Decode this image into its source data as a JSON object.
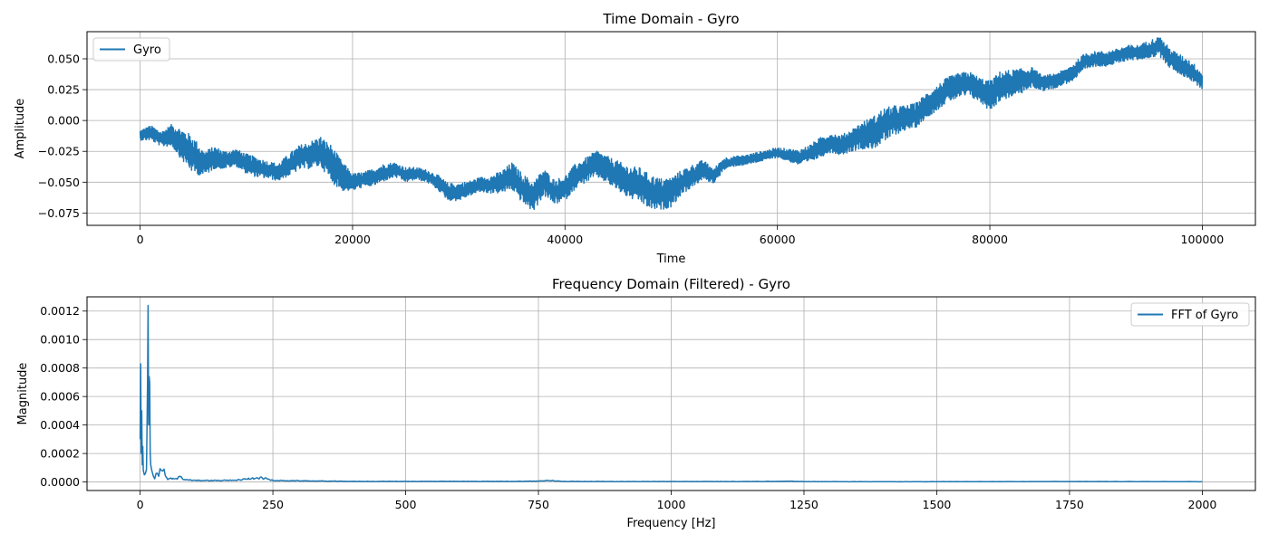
{
  "chart_data": [
    {
      "type": "line",
      "title": "Time Domain - Gyro",
      "xlabel": "Time",
      "ylabel": "Amplitude",
      "xlim": [
        -5000,
        105000
      ],
      "ylim": [
        -0.085,
        0.072
      ],
      "xticks": [
        0,
        20000,
        40000,
        60000,
        80000,
        100000
      ],
      "xtick_labels": [
        "0",
        "20000",
        "40000",
        "60000",
        "80000",
        "100000"
      ],
      "yticks": [
        -0.075,
        -0.05,
        -0.025,
        0.0,
        0.025,
        0.05
      ],
      "ytick_labels": [
        "−0.075",
        "−0.050",
        "−0.025",
        "0.000",
        "0.025",
        "0.050"
      ],
      "grid": true,
      "legend_position": "upper-left",
      "series": [
        {
          "name": "Gyro",
          "color": "#1f77b4",
          "x": [
            0,
            1000,
            2000,
            3000,
            4000,
            5000,
            6000,
            7000,
            8000,
            9000,
            10000,
            11000,
            12000,
            13000,
            14000,
            15000,
            16000,
            17000,
            18000,
            19000,
            20000,
            21000,
            22000,
            23000,
            24000,
            25000,
            26000,
            27000,
            28000,
            29000,
            30000,
            31000,
            32000,
            33000,
            34000,
            35000,
            36000,
            37000,
            38000,
            39000,
            40000,
            41000,
            42000,
            43000,
            44000,
            45000,
            46000,
            47000,
            48000,
            49000,
            50000,
            51000,
            52000,
            53000,
            54000,
            55000,
            56000,
            57000,
            58000,
            59000,
            60000,
            61000,
            62000,
            63000,
            64000,
            65000,
            66000,
            67000,
            68000,
            69000,
            70000,
            71000,
            72000,
            73000,
            74000,
            75000,
            76000,
            77000,
            78000,
            79000,
            80000,
            81000,
            82000,
            83000,
            84000,
            85000,
            86000,
            87000,
            88000,
            89000,
            90000,
            91000,
            92000,
            93000,
            94000,
            95000,
            96000,
            97000,
            98000,
            99000,
            100000
          ],
          "y": [
            -0.012,
            -0.01,
            -0.015,
            -0.012,
            -0.02,
            -0.028,
            -0.035,
            -0.03,
            -0.032,
            -0.03,
            -0.035,
            -0.038,
            -0.04,
            -0.042,
            -0.036,
            -0.03,
            -0.028,
            -0.025,
            -0.035,
            -0.045,
            -0.05,
            -0.048,
            -0.046,
            -0.042,
            -0.04,
            -0.044,
            -0.043,
            -0.045,
            -0.05,
            -0.058,
            -0.058,
            -0.055,
            -0.052,
            -0.052,
            -0.05,
            -0.045,
            -0.055,
            -0.062,
            -0.05,
            -0.058,
            -0.055,
            -0.045,
            -0.04,
            -0.035,
            -0.04,
            -0.045,
            -0.05,
            -0.052,
            -0.058,
            -0.06,
            -0.058,
            -0.05,
            -0.045,
            -0.04,
            -0.045,
            -0.035,
            -0.033,
            -0.032,
            -0.03,
            -0.028,
            -0.026,
            -0.028,
            -0.03,
            -0.027,
            -0.022,
            -0.018,
            -0.02,
            -0.016,
            -0.012,
            -0.01,
            -0.004,
            0.0,
            0.002,
            0.004,
            0.012,
            0.018,
            0.025,
            0.028,
            0.03,
            0.025,
            0.02,
            0.028,
            0.03,
            0.032,
            0.035,
            0.03,
            0.032,
            0.035,
            0.04,
            0.048,
            0.05,
            0.05,
            0.052,
            0.055,
            0.055,
            0.058,
            0.06,
            0.05,
            0.045,
            0.04,
            0.032
          ],
          "band": [
            0.004,
            0.006,
            0.006,
            0.009,
            0.013,
            0.015,
            0.01,
            0.009,
            0.007,
            0.007,
            0.008,
            0.008,
            0.007,
            0.007,
            0.009,
            0.01,
            0.011,
            0.012,
            0.015,
            0.012,
            0.007,
            0.006,
            0.007,
            0.007,
            0.006,
            0.006,
            0.005,
            0.005,
            0.006,
            0.007,
            0.007,
            0.006,
            0.006,
            0.007,
            0.009,
            0.011,
            0.012,
            0.012,
            0.011,
            0.01,
            0.01,
            0.01,
            0.01,
            0.011,
            0.011,
            0.012,
            0.013,
            0.014,
            0.014,
            0.013,
            0.012,
            0.01,
            0.009,
            0.008,
            0.006,
            0.005,
            0.004,
            0.004,
            0.004,
            0.004,
            0.004,
            0.005,
            0.006,
            0.007,
            0.008,
            0.008,
            0.008,
            0.009,
            0.011,
            0.013,
            0.014,
            0.012,
            0.01,
            0.01,
            0.01,
            0.01,
            0.01,
            0.01,
            0.01,
            0.01,
            0.012,
            0.012,
            0.011,
            0.01,
            0.008,
            0.006,
            0.006,
            0.006,
            0.007,
            0.007,
            0.006,
            0.006,
            0.006,
            0.006,
            0.006,
            0.007,
            0.008,
            0.008,
            0.008,
            0.008,
            0.007
          ]
        }
      ]
    },
    {
      "type": "line",
      "title": "Frequency Domain (Filtered) - Gyro",
      "xlabel": "Frequency [Hz]",
      "ylabel": "Magnitude",
      "xlim": [
        -100,
        2100
      ],
      "ylim": [
        -6e-05,
        0.0013
      ],
      "xticks": [
        0,
        250,
        500,
        750,
        1000,
        1250,
        1500,
        1750,
        2000
      ],
      "xtick_labels": [
        "0",
        "250",
        "500",
        "750",
        "1000",
        "1250",
        "1500",
        "1750",
        "2000"
      ],
      "yticks": [
        0.0,
        0.0002,
        0.0004,
        0.0006,
        0.0008,
        0.001,
        0.0012
      ],
      "ytick_labels": [
        "0.0000",
        "0.0002",
        "0.0004",
        "0.0006",
        "0.0008",
        "0.0010",
        "0.0012"
      ],
      "grid": true,
      "legend_position": "upper-right",
      "series": [
        {
          "name": "FFT of Gyro",
          "color": "#1f77b4",
          "x": [
            0,
            1,
            2,
            3,
            4,
            5,
            6,
            8,
            10,
            12,
            14,
            15,
            16,
            17,
            18,
            19,
            20,
            22,
            25,
            30,
            35,
            40,
            45,
            50,
            60,
            70,
            75,
            80,
            90,
            100,
            120,
            150,
            180,
            200,
            210,
            220,
            230,
            240,
            250,
            300,
            350,
            400,
            500,
            600,
            700,
            750,
            770,
            790,
            800,
            900,
            1000,
            1100,
            1200,
            1220,
            1240,
            1300,
            1500,
            1750,
            2000
          ],
          "y": [
            0.0003,
            0.00083,
            0.0002,
            0.0005,
            0.00012,
            0.00025,
            8e-05,
            5e-05,
            6e-05,
            9e-05,
            0.0007,
            0.00124,
            0.0004,
            0.00074,
            0.0007,
            0.0002,
            0.00012,
            8e-05,
            4e-05,
            6e-05,
            4e-05,
            8e-05,
            9e-05,
            3e-05,
            2e-05,
            2e-05,
            4e-05,
            2e-05,
            1.5e-05,
            1.2e-05,
            1e-05,
            1e-05,
            1.2e-05,
            2e-05,
            2.5e-05,
            3e-05,
            2.8e-05,
            2e-05,
            1e-05,
            8e-06,
            6e-06,
            4e-06,
            4e-06,
            4e-06,
            4e-06,
            6e-06,
            1e-05,
            6e-06,
            4e-06,
            3e-06,
            3e-06,
            3e-06,
            4e-06,
            6e-06,
            3e-06,
            2e-06,
            2e-06,
            3e-06,
            2e-06
          ]
        }
      ]
    }
  ]
}
